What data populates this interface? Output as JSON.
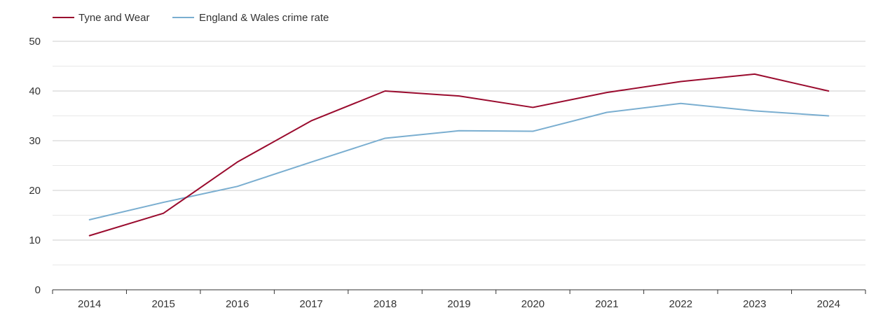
{
  "chart_data": {
    "type": "line",
    "title": "",
    "xlabel": "",
    "ylabel": "",
    "x": [
      "2014",
      "2015",
      "2016",
      "2017",
      "2018",
      "2019",
      "2020",
      "2021",
      "2022",
      "2023",
      "2024"
    ],
    "ylim": [
      0,
      50
    ],
    "yticks": [
      "0",
      "10",
      "20",
      "30",
      "40",
      "50"
    ],
    "grid": true,
    "legend_position": "top-left",
    "series": [
      {
        "name": "Tyne and Wear",
        "color": "#9a0b2e",
        "values": [
          10.9,
          15.4,
          25.7,
          34.0,
          40.0,
          39.0,
          36.7,
          39.7,
          41.9,
          43.4,
          40.0
        ]
      },
      {
        "name": "England & Wales crime rate",
        "color": "#7aaed0",
        "values": [
          14.1,
          17.6,
          20.8,
          25.7,
          30.5,
          32.0,
          31.9,
          35.7,
          37.5,
          36.0,
          35.0
        ]
      }
    ]
  }
}
